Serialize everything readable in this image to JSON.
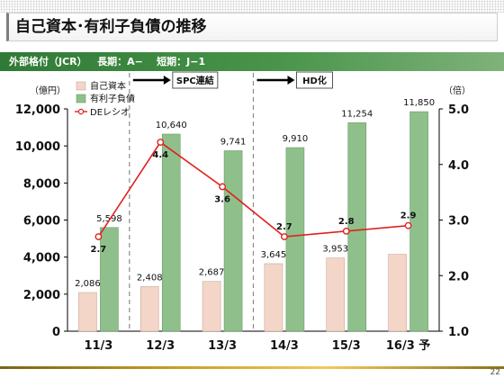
{
  "title": "自己資本･有利子負債の推移",
  "rating_text": "外部格付（JCR）   長期：A−    短期：J−1",
  "page_number": "22",
  "colors": {
    "equity": "#f3d6c8",
    "debt": "#8fc08c",
    "ratio": "#e02020",
    "band": "#2f7a36"
  },
  "chart_data": {
    "type": "bar",
    "categories": [
      "11/3",
      "12/3",
      "13/3",
      "14/3",
      "15/3",
      "16/3 予"
    ],
    "series": [
      {
        "name": "自己資本",
        "type": "bar",
        "axis": "left",
        "values": [
          2086,
          2408,
          2687,
          3645,
          3953,
          null
        ],
        "labels": [
          "2,086",
          "2,408",
          "2,687",
          "3,645",
          "3,953",
          ""
        ]
      },
      {
        "name": "有利子負債",
        "type": "bar",
        "axis": "left",
        "values": [
          5598,
          10640,
          9741,
          9910,
          11254,
          11850
        ],
        "labels": [
          "5,598",
          "10,640",
          "9,741",
          "9,910",
          "11,254",
          "11,850"
        ]
      },
      {
        "name": "DEレシオ",
        "type": "line",
        "axis": "right",
        "values": [
          2.7,
          4.4,
          3.6,
          2.7,
          2.8,
          2.9
        ],
        "labels": [
          "2.7",
          "4.4",
          "3.6",
          "2.7",
          "2.8",
          "2.9"
        ]
      }
    ],
    "estimated_values": {
      "自己資本": [
        null,
        null,
        null,
        null,
        null,
        4150
      ]
    },
    "ylabel_left": "（億円）",
    "ylabel_right": "（倍）",
    "ylim_left": [
      0,
      12000
    ],
    "ylim_right": [
      1.0,
      5.0
    ],
    "yticks_left": [
      "0",
      "2,000",
      "4,000",
      "6,000",
      "8,000",
      "10,000",
      "12,000"
    ],
    "yticks_right": [
      "1.0",
      "2.0",
      "3.0",
      "4.0",
      "5.0"
    ],
    "grid": false,
    "legend_position": "top-left",
    "annotations": [
      {
        "text": "SPC連結",
        "from_category": "12/3"
      },
      {
        "text": "HD化",
        "from_category": "14/3"
      }
    ]
  }
}
